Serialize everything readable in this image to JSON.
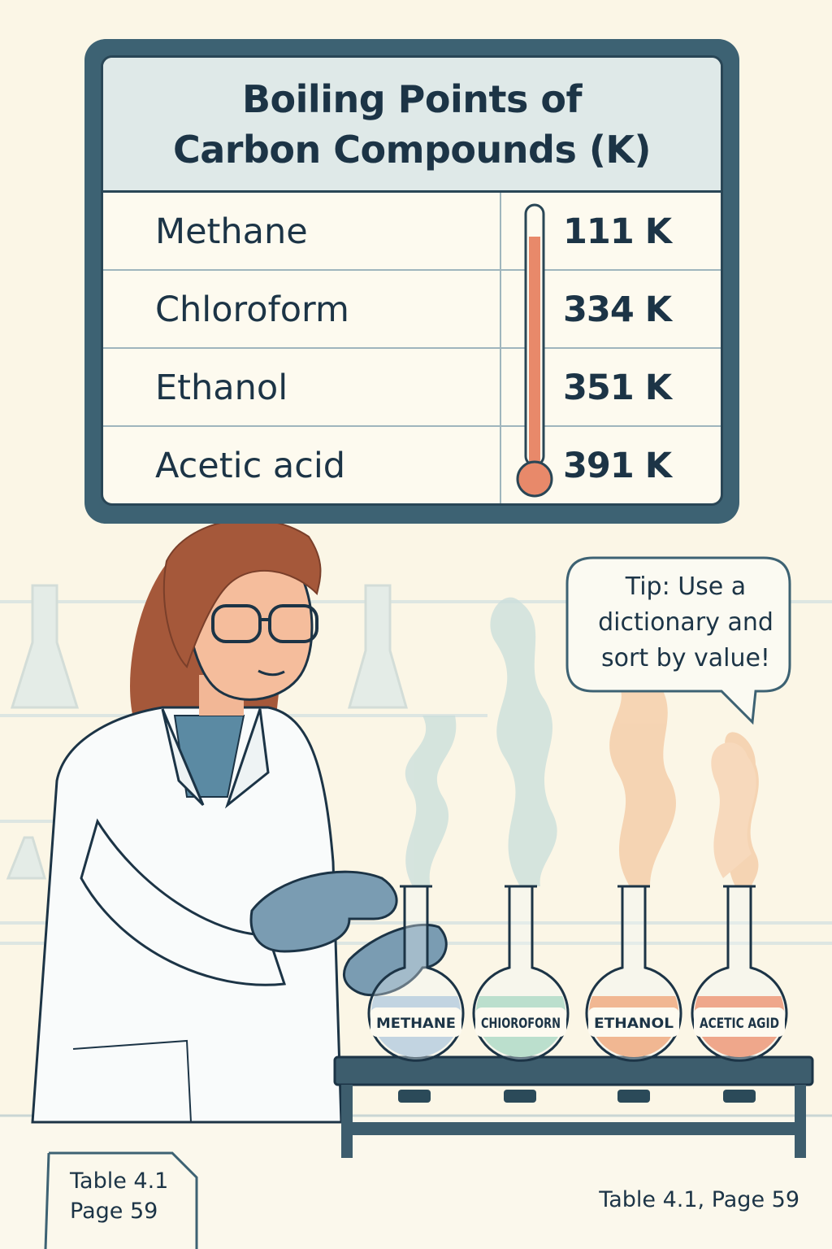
{
  "board": {
    "title_line1": "Boiling Points of",
    "title_line2": "Carbon Compounds (K)",
    "rows": [
      {
        "name": "Methane",
        "value": "111 K"
      },
      {
        "name": "Chloroform",
        "value": "334 K"
      },
      {
        "name": "Ethanol",
        "value": "351 K"
      },
      {
        "name": "Acetic acid",
        "value": "391 K"
      }
    ]
  },
  "tip": {
    "line1": "Tip: Use a",
    "line2": "dictionary and",
    "line3": "sort by value!"
  },
  "flasks": [
    {
      "label": "METHANE",
      "liquid_color": "#a9c2d6"
    },
    {
      "label": "CHIOROFORN",
      "liquid_color": "#9fd3b7"
    },
    {
      "label": "ETHANOL",
      "liquid_color": "#f1955d"
    },
    {
      "label": "ACETIC AGID",
      "liquid_color": "#ee7d52"
    }
  ],
  "captions": {
    "left_line1": "Table 4.1",
    "left_line2": "Page 59",
    "right": "Table 4.1, Page 59"
  },
  "colors": {
    "background": "#fbf6e6",
    "board_frame": "#3d6273",
    "ink": "#1c3446",
    "thermometer_fill": "#e8896a"
  }
}
